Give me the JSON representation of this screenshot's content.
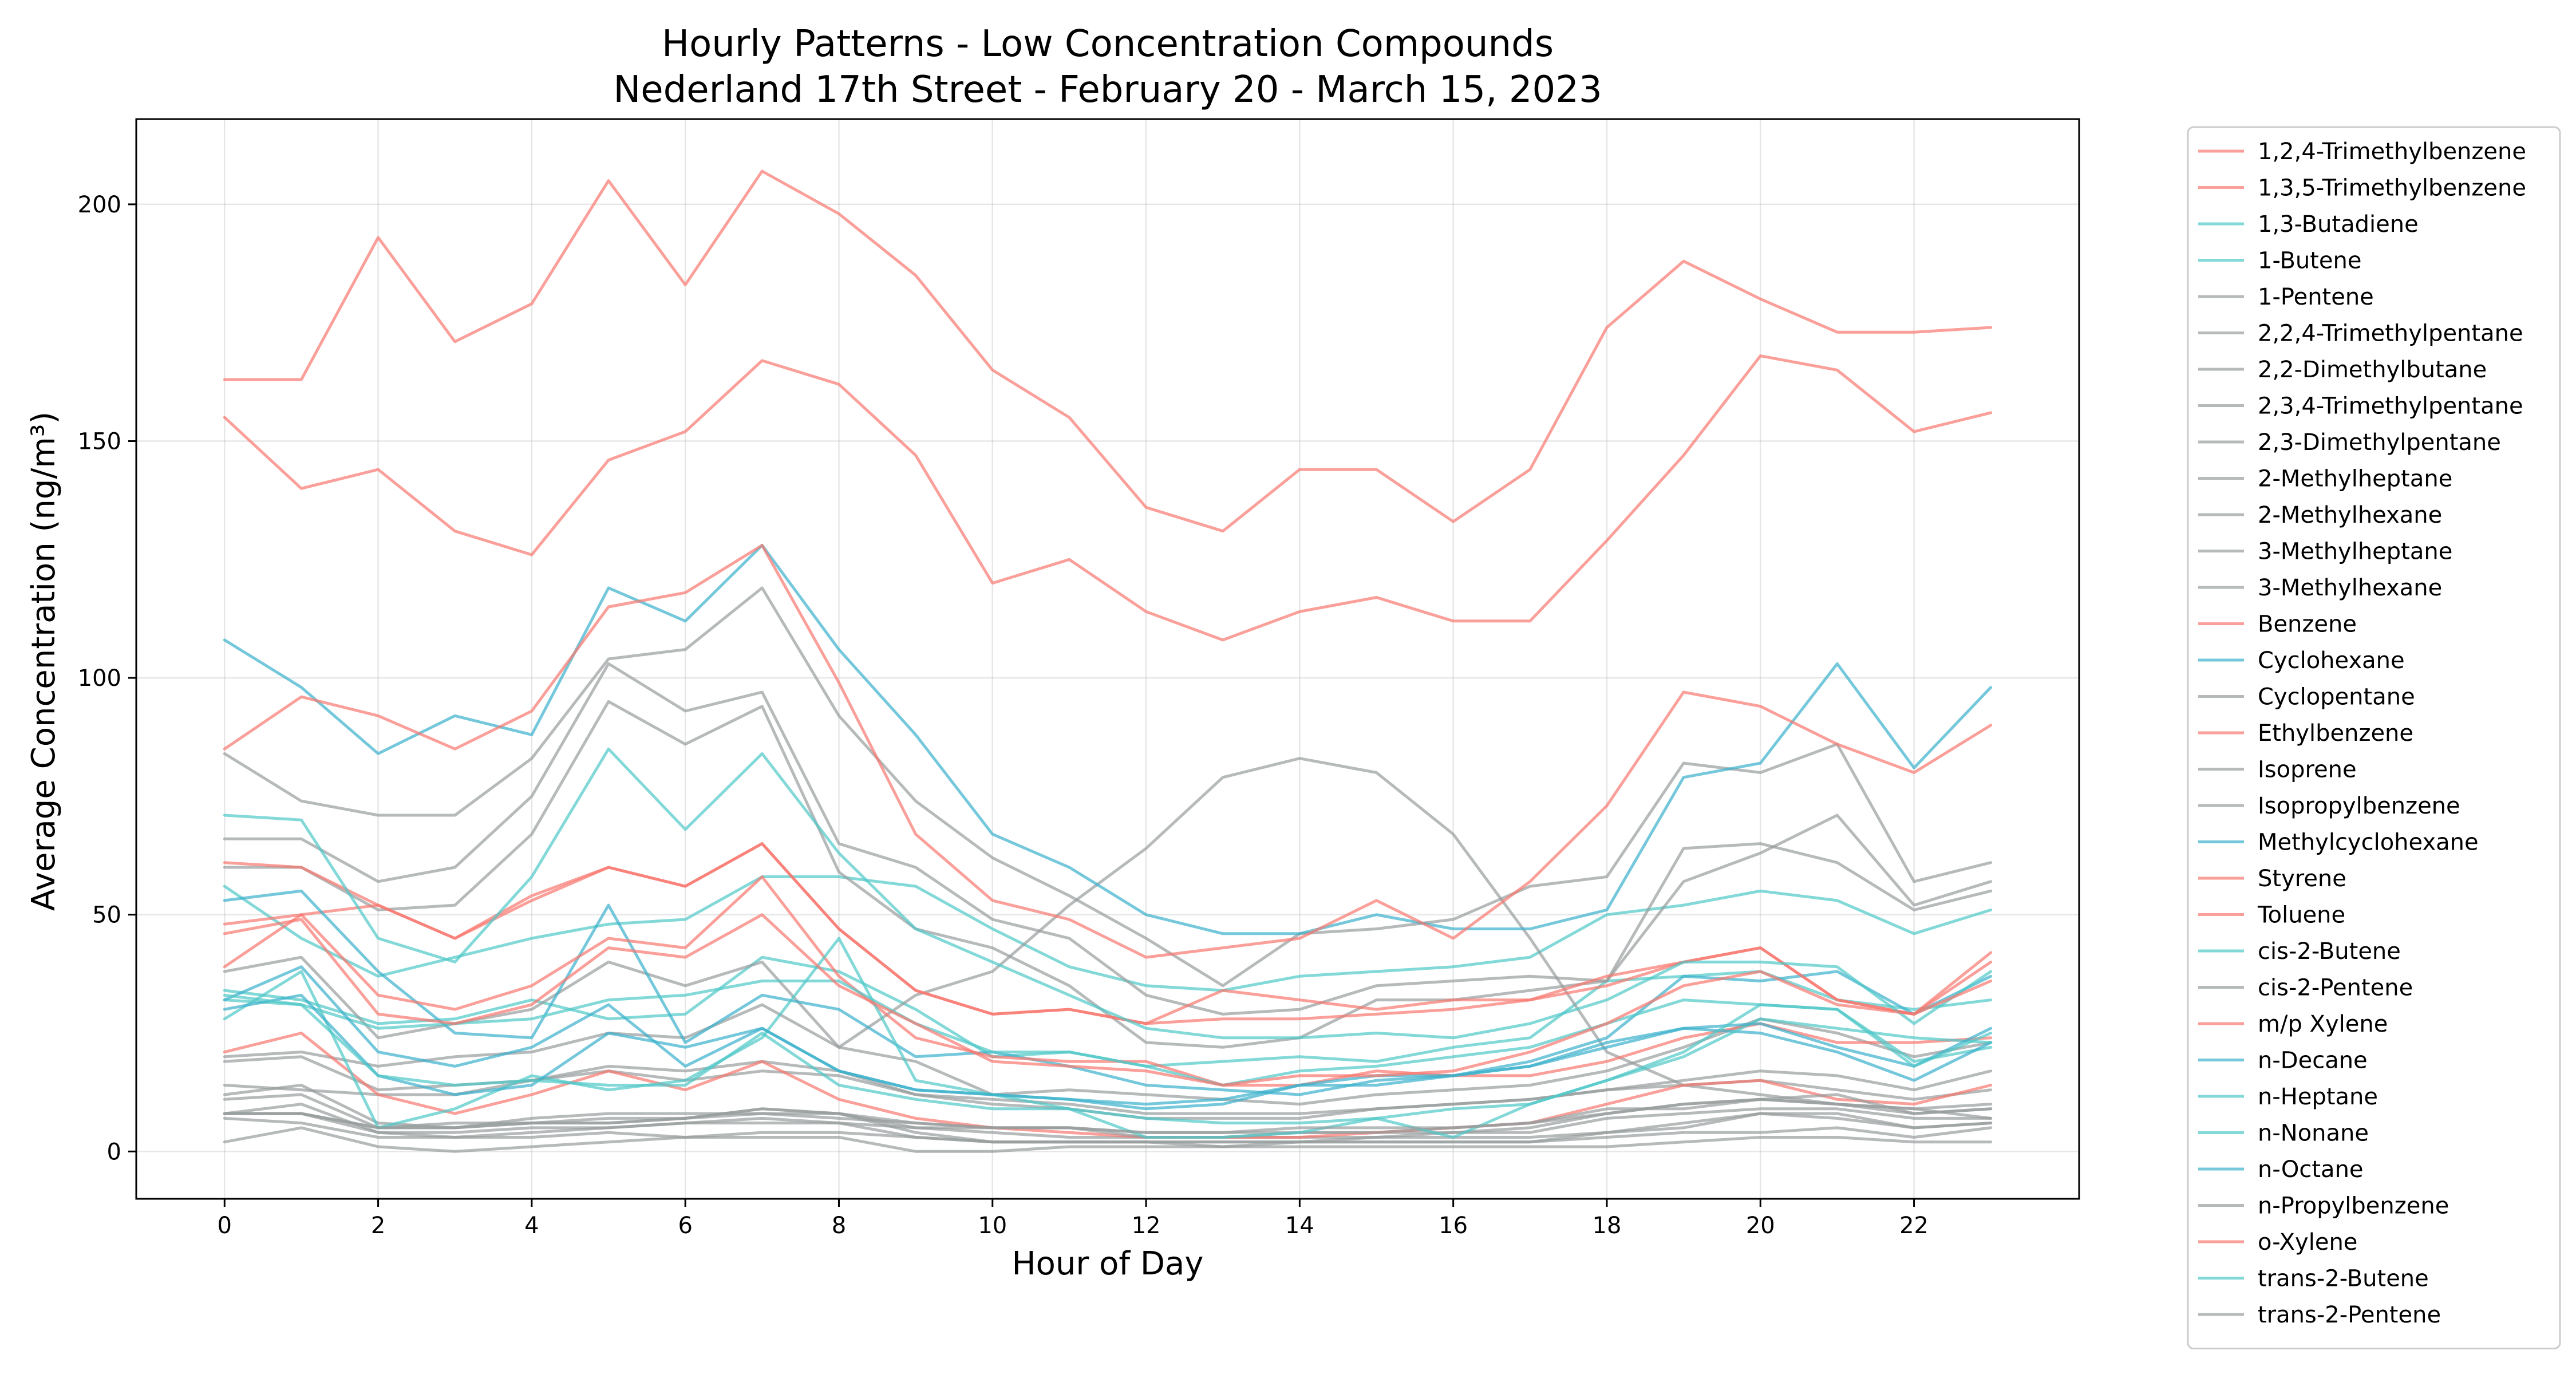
{
  "chart_data": {
    "type": "line",
    "title": [
      "Hourly Patterns - Low Concentration Compounds",
      "Nederland 17th Street - February 20 - March 15, 2023"
    ],
    "xlabel": "Hour of Day",
    "ylabel": "Average Concentration (ng/m³)",
    "xlim": [
      -1.15,
      24.15
    ],
    "ylim": [
      -10,
      218
    ],
    "x_ticks": [
      0,
      2,
      4,
      6,
      8,
      10,
      12,
      14,
      16,
      18,
      20,
      22
    ],
    "y_ticks": [
      0,
      50,
      100,
      150,
      200
    ],
    "grid": true,
    "legend_position": "outside-right",
    "colors": {
      "red": "#f8766d",
      "cyan": "#4fc8c8",
      "blue": "#3ab0cc",
      "gray": "#979c9c"
    },
    "x": [
      0,
      1,
      2,
      3,
      4,
      5,
      6,
      7,
      8,
      9,
      10,
      11,
      12,
      13,
      14,
      15,
      16,
      17,
      18,
      19,
      20,
      21,
      22,
      23
    ],
    "series": [
      {
        "name": "1,2,4-Trimethylbenzene",
        "color": "red",
        "values": [
          163,
          163,
          193,
          171,
          179,
          205,
          183,
          207,
          198,
          185,
          165,
          155,
          136,
          131,
          144,
          144,
          133,
          144,
          174,
          188,
          180,
          173,
          173,
          174
        ]
      },
      {
        "name": "1,3,5-Trimethylbenzene",
        "color": "red",
        "values": [
          155,
          140,
          144,
          131,
          126,
          146,
          152,
          167,
          162,
          147,
          120,
          125,
          114,
          108,
          114,
          117,
          112,
          112,
          129,
          147,
          168,
          165,
          152,
          156
        ]
      },
      {
        "name": "1,3-Butadiene",
        "color": "cyan",
        "values": [
          56,
          45,
          37,
          41,
          45,
          48,
          49,
          58,
          58,
          56,
          47,
          39,
          35,
          34,
          37,
          38,
          39,
          41,
          50,
          52,
          55,
          53,
          46,
          51
        ]
      },
      {
        "name": "1-Butene",
        "color": "cyan",
        "values": [
          34,
          32,
          27,
          28,
          32,
          28,
          29,
          41,
          38,
          30,
          20,
          21,
          18,
          19,
          20,
          19,
          22,
          24,
          36,
          37,
          38,
          32,
          30,
          32
        ]
      },
      {
        "name": "1-Pentene",
        "color": "gray",
        "values": [
          8,
          10,
          4,
          4,
          5,
          5,
          6,
          7,
          6,
          5,
          4,
          3,
          3,
          3,
          3,
          3,
          4,
          4,
          7,
          8,
          9,
          9,
          7,
          7
        ]
      },
      {
        "name": "2,2,4-Trimethylpentane",
        "color": "gray",
        "values": [
          84,
          74,
          71,
          71,
          83,
          104,
          106,
          119,
          92,
          74,
          62,
          54,
          45,
          35,
          46,
          47,
          49,
          56,
          58,
          82,
          80,
          86,
          57,
          61
        ]
      },
      {
        "name": "2,2-Dimethylbutane",
        "color": "gray",
        "values": [
          11,
          12,
          5,
          5,
          7,
          8,
          8,
          8,
          8,
          4,
          2,
          2,
          2,
          2,
          2,
          3,
          3,
          3,
          4,
          6,
          8,
          8,
          5,
          6
        ]
      },
      {
        "name": "2,3,4-Trimethylpentane",
        "color": "gray",
        "values": [
          38,
          41,
          24,
          27,
          30,
          40,
          35,
          40,
          22,
          33,
          38,
          52,
          64,
          79,
          83,
          80,
          67,
          45,
          21,
          14,
          12,
          10,
          9,
          7
        ]
      },
      {
        "name": "2,3-Dimethylpentane",
        "color": "gray",
        "values": [
          19,
          20,
          13,
          14,
          15,
          18,
          17,
          19,
          17,
          12,
          11,
          10,
          8,
          8,
          8,
          9,
          10,
          11,
          13,
          14,
          15,
          13,
          11,
          13
        ]
      },
      {
        "name": "2-Methylheptane",
        "color": "gray",
        "values": [
          14,
          13,
          12,
          12,
          15,
          17,
          15,
          17,
          16,
          12,
          10,
          9,
          7,
          7,
          7,
          9,
          10,
          11,
          13,
          15,
          17,
          16,
          13,
          17
        ]
      },
      {
        "name": "2-Methylhexane",
        "color": "gray",
        "values": [
          66,
          66,
          57,
          60,
          75,
          103,
          93,
          97,
          65,
          60,
          49,
          45,
          33,
          29,
          30,
          35,
          36,
          37,
          36,
          64,
          65,
          61,
          51,
          55
        ]
      },
      {
        "name": "3-Methylheptane",
        "color": "gray",
        "values": [
          20,
          21,
          18,
          20,
          21,
          25,
          24,
          31,
          22,
          19,
          12,
          13,
          12,
          11,
          10,
          12,
          13,
          14,
          17,
          22,
          28,
          25,
          20,
          23
        ]
      },
      {
        "name": "3-Methylhexane",
        "color": "gray",
        "values": [
          60,
          60,
          51,
          52,
          67,
          95,
          86,
          94,
          59,
          47,
          43,
          35,
          23,
          22,
          24,
          32,
          32,
          34,
          36,
          57,
          63,
          71,
          52,
          57
        ]
      },
      {
        "name": "Benzene",
        "color": "red",
        "values": [
          39,
          50,
          52,
          45,
          54,
          60,
          56,
          65,
          47,
          34,
          29,
          30,
          27,
          28,
          28,
          29,
          30,
          32,
          37,
          40,
          43,
          32,
          29,
          42
        ]
      },
      {
        "name": "Cyclohexane",
        "color": "blue",
        "values": [
          53,
          55,
          38,
          25,
          24,
          52,
          23,
          33,
          30,
          20,
          21,
          18,
          14,
          13,
          12,
          15,
          16,
          19,
          24,
          37,
          36,
          38,
          29,
          37
        ]
      },
      {
        "name": "Cyclopentane",
        "color": "gray",
        "values": [
          7,
          6,
          3,
          3,
          3,
          4,
          3,
          4,
          4,
          3,
          2,
          2,
          2,
          2,
          2,
          2,
          2,
          2,
          3,
          4,
          4,
          5,
          3,
          5
        ]
      },
      {
        "name": "Ethylbenzene",
        "color": "red",
        "values": [
          48,
          50,
          33,
          30,
          35,
          45,
          43,
          58,
          37,
          24,
          20,
          19,
          19,
          14,
          14,
          17,
          16,
          16,
          19,
          24,
          27,
          23,
          23,
          24
        ]
      },
      {
        "name": "Isoprene",
        "color": "gray",
        "values": [
          2,
          5,
          1,
          0,
          1,
          2,
          3,
          3,
          3,
          0,
          0,
          1,
          1,
          1,
          1,
          1,
          1,
          1,
          1,
          2,
          3,
          3,
          2,
          2
        ]
      },
      {
        "name": "Isopropylbenzene",
        "color": "gray",
        "values": [
          8,
          8,
          5,
          6,
          6,
          7,
          7,
          9,
          8,
          6,
          5,
          5,
          4,
          4,
          4,
          4,
          4,
          5,
          8,
          10,
          11,
          10,
          8,
          9
        ]
      },
      {
        "name": "Methylcyclohexane",
        "color": "blue",
        "values": [
          108,
          98,
          84,
          92,
          88,
          119,
          112,
          128,
          106,
          88,
          67,
          60,
          50,
          46,
          46,
          50,
          47,
          47,
          51,
          79,
          82,
          103,
          81,
          98
        ]
      },
      {
        "name": "Styrene",
        "color": "red",
        "values": [
          21,
          25,
          12,
          8,
          12,
          17,
          13,
          19,
          11,
          7,
          5,
          4,
          3,
          3,
          3,
          4,
          5,
          6,
          10,
          14,
          15,
          11,
          10,
          14
        ]
      },
      {
        "name": "Toluene",
        "color": "red",
        "values": [
          85,
          96,
          92,
          85,
          93,
          115,
          118,
          128,
          99,
          67,
          53,
          49,
          41,
          43,
          45,
          53,
          45,
          57,
          73,
          97,
          94,
          86,
          80,
          90
        ]
      },
      {
        "name": "cis-2-Butene",
        "color": "cyan",
        "values": [
          32,
          31,
          26,
          27,
          28,
          32,
          33,
          36,
          36,
          27,
          21,
          21,
          18,
          14,
          17,
          18,
          20,
          22,
          27,
          32,
          31,
          30,
          19,
          22
        ]
      },
      {
        "name": "cis-2-Pentene",
        "color": "gray",
        "values": [
          12,
          14,
          6,
          5,
          6,
          6,
          7,
          9,
          8,
          5,
          5,
          5,
          3,
          3,
          4,
          4,
          5,
          6,
          9,
          9,
          11,
          12,
          8,
          9
        ]
      },
      {
        "name": "m/p Xylene",
        "color": "red",
        "values": [
          61,
          60,
          52,
          45,
          53,
          60,
          56,
          65,
          47,
          34,
          29,
          30,
          27,
          34,
          32,
          30,
          32,
          32,
          35,
          40,
          43,
          32,
          29,
          40
        ]
      },
      {
        "name": "n-Decane",
        "color": "blue",
        "values": [
          32,
          39,
          21,
          18,
          22,
          31,
          18,
          26,
          17,
          13,
          12,
          11,
          10,
          11,
          14,
          14,
          16,
          18,
          22,
          26,
          25,
          21,
          15,
          23
        ]
      },
      {
        "name": "n-Heptane",
        "color": "cyan",
        "values": [
          71,
          70,
          45,
          40,
          58,
          85,
          68,
          84,
          63,
          47,
          40,
          33,
          26,
          24,
          24,
          25,
          24,
          27,
          32,
          40,
          40,
          39,
          27,
          38
        ]
      },
      {
        "name": "n-Nonane",
        "color": "cyan",
        "values": [
          28,
          38,
          5,
          9,
          16,
          13,
          15,
          24,
          45,
          15,
          12,
          9,
          3,
          3,
          4,
          7,
          3,
          10,
          15,
          20,
          28,
          26,
          24,
          23
        ]
      },
      {
        "name": "n-Octane",
        "color": "blue",
        "values": [
          30,
          33,
          16,
          12,
          14,
          25,
          22,
          26,
          17,
          13,
          12,
          11,
          9,
          10,
          14,
          16,
          16,
          18,
          23,
          26,
          27,
          22,
          18,
          26
        ]
      },
      {
        "name": "n-Propylbenzene",
        "color": "gray",
        "values": [
          8,
          8,
          5,
          5,
          6,
          6,
          7,
          8,
          7,
          6,
          5,
          5,
          4,
          4,
          5,
          5,
          5,
          6,
          8,
          10,
          11,
          10,
          9,
          10
        ]
      },
      {
        "name": "o-Xylene",
        "color": "red",
        "values": [
          46,
          49,
          29,
          27,
          31,
          43,
          41,
          50,
          35,
          27,
          19,
          18,
          17,
          14,
          16,
          16,
          17,
          21,
          27,
          35,
          38,
          31,
          29,
          36
        ]
      },
      {
        "name": "trans-2-Butene",
        "color": "cyan",
        "values": [
          33,
          31,
          16,
          14,
          15,
          14,
          14,
          25,
          14,
          11,
          9,
          9,
          7,
          6,
          6,
          7,
          9,
          10,
          15,
          21,
          31,
          30,
          18,
          25
        ]
      },
      {
        "name": "trans-2-Pentene",
        "color": "gray",
        "values": [
          8,
          8,
          4,
          3,
          4,
          5,
          6,
          6,
          6,
          3,
          2,
          2,
          2,
          1,
          2,
          2,
          2,
          2,
          4,
          5,
          8,
          7,
          5,
          6
        ]
      }
    ]
  }
}
